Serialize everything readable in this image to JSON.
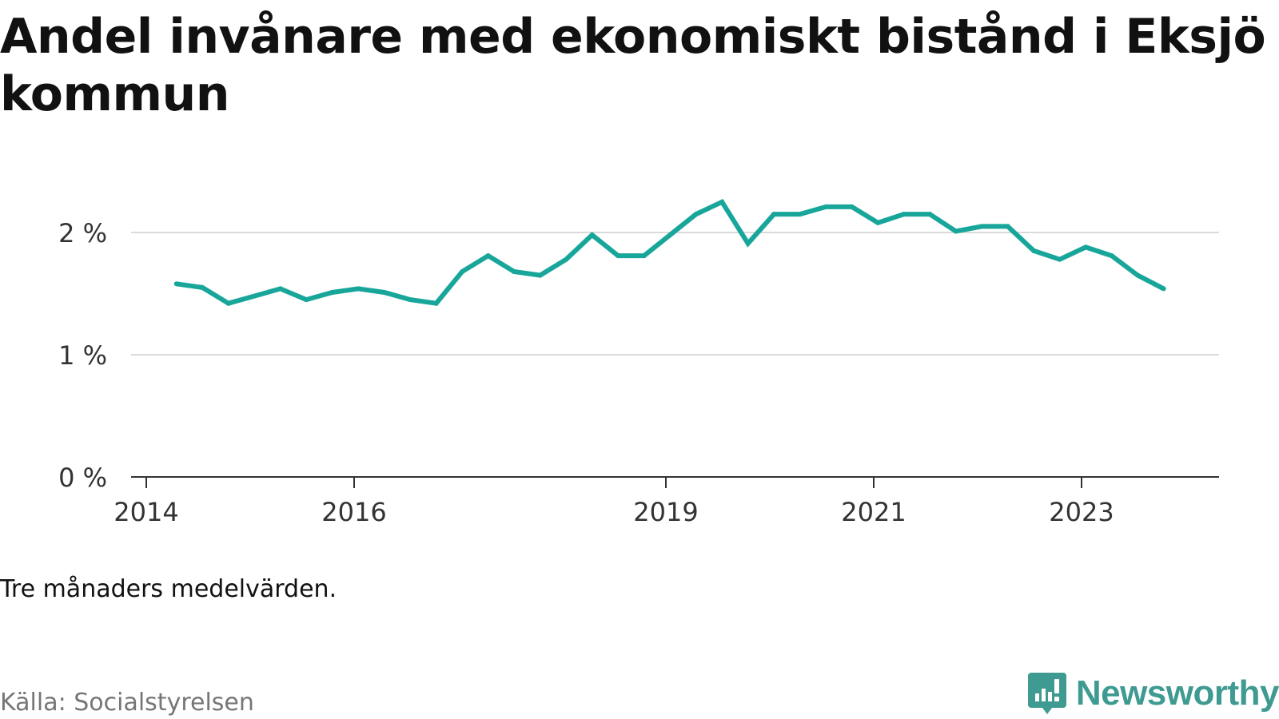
{
  "title": "Andel invånare med ekonomiskt bistånd i Eksjö kommun",
  "note": "Tre månaders medelvärden.",
  "source": "Källa: Socialstyrelsen",
  "brand": {
    "name": "Newsworthy",
    "icon": "newsworthy-logo-icon",
    "color": "#3f9b91"
  },
  "chart_data": {
    "type": "line",
    "title": "Andel invånare med ekonomiskt bistånd i Eksjö kommun",
    "xlabel": "",
    "ylabel": "",
    "ylim": [
      0,
      2.2
    ],
    "yticks": [
      0,
      1,
      2
    ],
    "ytick_labels": [
      "0 %",
      "1 %",
      "2 %"
    ],
    "xlim": [
      2014.0,
      2024.45
    ],
    "xticks": [
      2014,
      2016,
      2019,
      2021,
      2023
    ],
    "xtick_labels": [
      "2014",
      "2016",
      "2019",
      "2021",
      "2023"
    ],
    "grid": true,
    "legend": "none",
    "series": [
      {
        "name": "Andel invånare med ekonomiskt bistånd",
        "color": "#18a69b",
        "x": [
          2014.29,
          2014.54,
          2014.79,
          2015.04,
          2015.29,
          2015.54,
          2015.79,
          2016.04,
          2016.29,
          2016.54,
          2016.79,
          2017.04,
          2017.29,
          2017.54,
          2017.79,
          2018.04,
          2018.29,
          2018.54,
          2018.79,
          2019.04,
          2019.29,
          2019.54,
          2019.79,
          2020.04,
          2020.29,
          2020.54,
          2020.79,
          2021.04,
          2021.29,
          2021.54,
          2021.79,
          2022.04,
          2022.29,
          2022.54,
          2022.79,
          2023.04,
          2023.29,
          2023.54,
          2023.79
        ],
        "values": [
          1.58,
          1.55,
          1.42,
          1.48,
          1.54,
          1.45,
          1.51,
          1.54,
          1.51,
          1.45,
          1.42,
          1.68,
          1.81,
          1.68,
          1.65,
          1.78,
          1.98,
          1.81,
          1.81,
          1.98,
          2.15,
          2.25,
          1.91,
          2.15,
          2.15,
          2.21,
          2.21,
          2.08,
          2.15,
          2.15,
          2.01,
          2.05,
          2.05,
          1.85,
          1.78,
          1.88,
          1.81,
          1.65,
          1.54
        ]
      }
    ]
  }
}
